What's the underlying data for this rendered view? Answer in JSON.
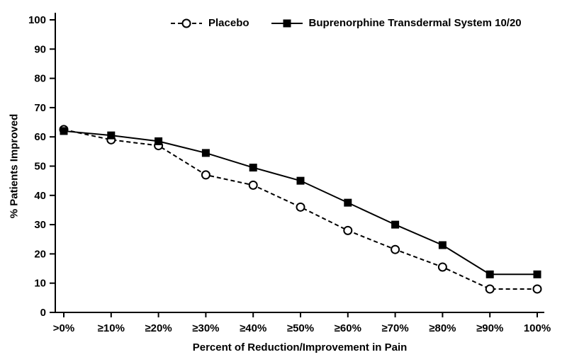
{
  "chart_data": {
    "type": "line",
    "title": "",
    "xlabel": "Percent of Reduction/Improvement in Pain",
    "ylabel": "% Patients Improved",
    "categories": [
      ">0%",
      "≥10%",
      "≥20%",
      "≥30%",
      "≥40%",
      "≥50%",
      "≥60%",
      "≥70%",
      "≥80%",
      "≥90%",
      "100%"
    ],
    "ylim": [
      0,
      100
    ],
    "yticks": [
      0,
      10,
      20,
      30,
      40,
      50,
      60,
      70,
      80,
      90,
      100
    ],
    "grid": false,
    "legend_position": "top",
    "axis_color": "#000000",
    "series": [
      {
        "name": "Placebo",
        "marker": "circle-open",
        "line": "dashed",
        "color": "#000000",
        "values": [
          62.5,
          59,
          57,
          47,
          43.5,
          36,
          28,
          21.5,
          15.5,
          8,
          8
        ]
      },
      {
        "name": "Buprenorphine Transdermal System 10/20",
        "marker": "square-filled",
        "line": "solid",
        "color": "#000000",
        "values": [
          62,
          60.5,
          58.5,
          54.5,
          49.5,
          45,
          37.5,
          30,
          23,
          13,
          13
        ]
      }
    ]
  }
}
